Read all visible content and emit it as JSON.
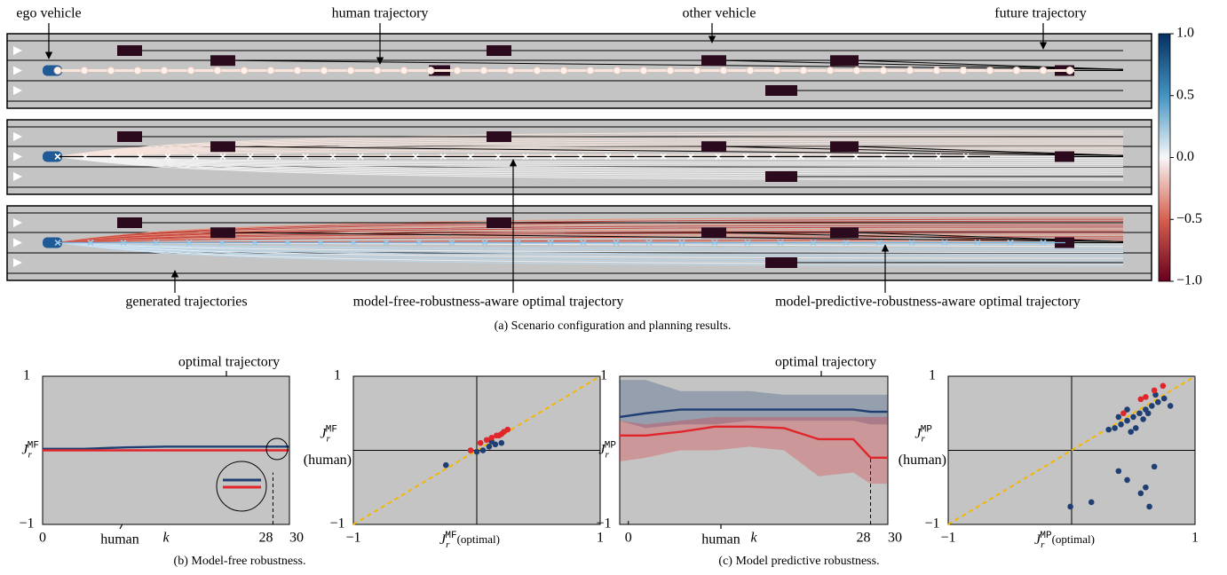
{
  "scenario": {
    "annotations": {
      "ego": "ego vehicle",
      "human": "human trajectory",
      "other": "other vehicle",
      "future": "future trajectory",
      "generated": "generated trajectories",
      "model_free": "model-free-robustness-aware optimal trajectory",
      "model_predictive": "model-predictive-robustness-aware optimal trajectory"
    },
    "caption": "(a) Scenario configuration and planning results.",
    "colorbar": {
      "ylim": [
        -1,
        1
      ],
      "yticks": [
        {
          "value": 1,
          "label": "1.0"
        },
        0.5,
        {
          "value": 0,
          "label": "0.0"
        },
        {
          "value": -0.5,
          "label": "−0.5"
        },
        {
          "value": -1,
          "label": "−1.0"
        }
      ]
    }
  },
  "chart_data": [
    {
      "type": "line",
      "xlabel": "k",
      "ylabel": {
        "symbol": "J",
        "subscript": "r",
        "superscript": "MF"
      },
      "annotations": [
        "optimal trajectory",
        "human"
      ],
      "xlim": [
        0,
        30
      ],
      "ylim": [
        -1,
        1
      ],
      "xticks": [
        0,
        28,
        30
      ],
      "yticks": [
        1,
        {
          "value": -1,
          "label": "−1"
        }
      ],
      "x": [
        0,
        5,
        10,
        15,
        20,
        25,
        28,
        30
      ],
      "series": [
        {
          "color": "#1f3f73",
          "values": [
            0.02,
            0.02,
            0.04,
            0.05,
            0.05,
            0.05,
            0.05,
            0.05
          ]
        },
        {
          "color": "#e0252b",
          "values": [
            0.0,
            0.0,
            0.0,
            0.0,
            0.0,
            0.0,
            0.0,
            0.0
          ]
        }
      ]
    },
    {
      "type": "scatter",
      "xlabel": {
        "symbol": "J",
        "subscript": "r",
        "superscript": "MF",
        "note": "(optimal)"
      },
      "ylabel": {
        "symbol": "J",
        "subscript": "r",
        "superscript": "MF",
        "note": "(human)"
      },
      "xlim": [
        -1,
        1
      ],
      "ylim": [
        -1,
        1
      ],
      "xticks": [
        {
          "value": -1,
          "label": "−1"
        },
        1
      ],
      "yticks": [
        1,
        {
          "value": -1,
          "label": "−1"
        }
      ],
      "diagonal_color": "#f5b700",
      "series": [
        {
          "color": "#1f3f73",
          "x": [
            -0.25,
            0.1,
            0.15,
            0.0,
            0.05,
            0.2,
            0.12
          ],
          "y": [
            -0.2,
            0.05,
            0.08,
            -0.02,
            0.0,
            0.1,
            0.12
          ]
        },
        {
          "color": "#e0252b",
          "x": [
            0.03,
            0.08,
            0.12,
            0.16,
            0.2,
            -0.05,
            0.22,
            0.25,
            0.18
          ],
          "y": [
            0.1,
            0.14,
            0.17,
            0.2,
            0.22,
            0.0,
            0.25,
            0.28,
            0.2
          ]
        }
      ]
    },
    {
      "type": "band-line",
      "xlabel": "k",
      "ylabel": {
        "symbol": "J",
        "subscript": "r",
        "superscript": "MP"
      },
      "annotations": [
        "optimal trajectory",
        "human"
      ],
      "xlim": [
        -1,
        30
      ],
      "ylim": [
        -1,
        1
      ],
      "xticks": [
        0,
        28,
        30
      ],
      "yticks": [
        1,
        {
          "value": -1,
          "label": "−1"
        }
      ],
      "x": [
        -1,
        2,
        6,
        10,
        14,
        18,
        22,
        26,
        28,
        30
      ],
      "series": [
        {
          "color": "#1f3f73",
          "values": [
            0.45,
            0.5,
            0.55,
            0.55,
            0.55,
            0.55,
            0.55,
            0.55,
            0.52,
            0.52
          ],
          "upper": [
            0.95,
            0.95,
            0.8,
            0.8,
            0.8,
            0.75,
            0.75,
            0.75,
            0.75,
            0.75
          ],
          "lower": [
            0.4,
            0.3,
            0.35,
            0.35,
            0.4,
            0.4,
            0.4,
            0.4,
            0.35,
            0.35
          ]
        },
        {
          "color": "#e0252b",
          "values": [
            0.2,
            0.2,
            0.25,
            0.32,
            0.32,
            0.3,
            0.15,
            0.15,
            -0.1,
            -0.1
          ],
          "upper": [
            0.4,
            0.35,
            0.4,
            0.45,
            0.45,
            0.45,
            0.45,
            0.45,
            0.45,
            0.45
          ],
          "lower": [
            -0.15,
            -0.1,
            0.0,
            0.0,
            0.05,
            0.0,
            -0.35,
            -0.3,
            -0.45,
            -0.45
          ]
        }
      ]
    },
    {
      "type": "scatter",
      "xlabel": {
        "symbol": "J",
        "subscript": "r",
        "superscript": "MP",
        "note": "(optimal)"
      },
      "ylabel": {
        "symbol": "J",
        "subscript": "r",
        "superscript": "MP",
        "note": "(human)"
      },
      "xlim": [
        -1,
        1
      ],
      "ylim": [
        -1,
        1
      ],
      "xticks": [
        {
          "value": -1,
          "label": "−1"
        },
        1
      ],
      "yticks": [
        1,
        {
          "value": -1,
          "label": "−1"
        }
      ],
      "diagonal_color": "#f5b700",
      "series": [
        {
          "color": "#1f3f73",
          "x": [
            0.35,
            0.4,
            0.45,
            0.5,
            0.55,
            0.6,
            0.65,
            0.7,
            0.75,
            0.8,
            0.48,
            0.52,
            0.58,
            0.62,
            0.45,
            0.38,
            0.3,
            0.68,
            0.45,
            0.67,
            0.56,
            0.63,
            0.38,
            0.16,
            -0.01,
            0.6
          ],
          "y": [
            0.3,
            0.35,
            0.4,
            0.45,
            0.5,
            0.55,
            0.6,
            0.65,
            0.7,
            0.6,
            0.25,
            0.3,
            0.42,
            0.5,
            0.55,
            0.45,
            0.28,
            0.75,
            -0.4,
            -0.22,
            -0.58,
            -0.76,
            -0.28,
            -0.7,
            -0.76,
            -0.5
          ]
        },
        {
          "color": "#e0252b",
          "x": [
            0.42,
            0.56,
            0.67,
            0.74,
            0.6
          ],
          "y": [
            0.5,
            0.69,
            0.81,
            0.87,
            0.72
          ]
        }
      ]
    }
  ],
  "captions": [
    "(b) Model-free robustness.",
    "(c) Model predictive robustness."
  ]
}
